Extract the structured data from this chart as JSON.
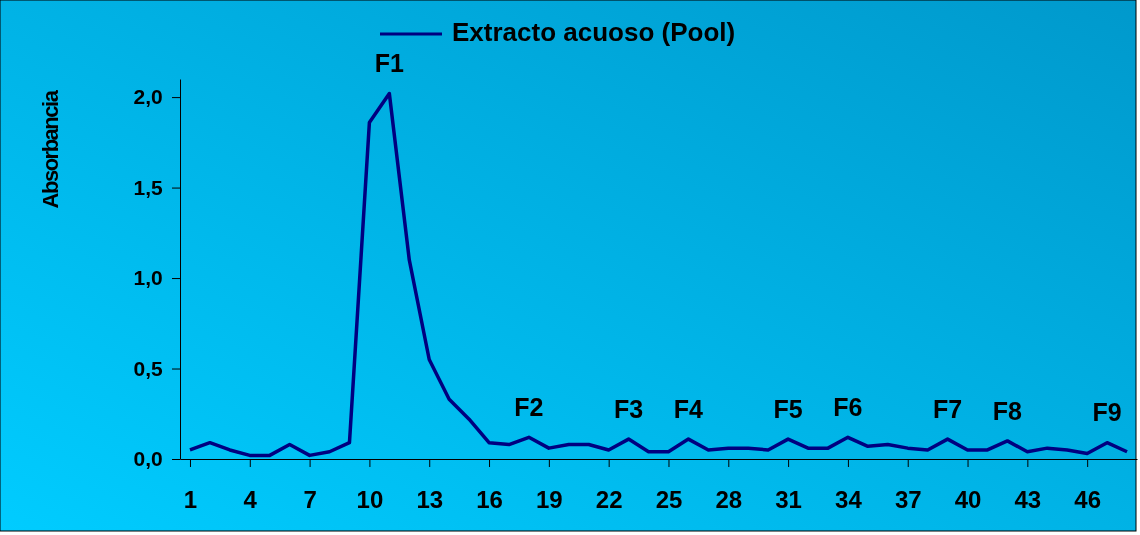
{
  "chart_data": {
    "type": "line",
    "ylabel": "Absorbancia",
    "legend": "top",
    "marker": "none",
    "line_style": "solid",
    "grid": false,
    "x": [
      1,
      2,
      3,
      4,
      5,
      6,
      7,
      8,
      9,
      10,
      11,
      12,
      13,
      14,
      15,
      16,
      17,
      18,
      19,
      20,
      21,
      22,
      23,
      24,
      25,
      26,
      27,
      28,
      29,
      30,
      31,
      32,
      33,
      34,
      35,
      36,
      37,
      38,
      39,
      40,
      41,
      42,
      43,
      44,
      45,
      46,
      47,
      48
    ],
    "series": [
      {
        "name": "Extracto acuoso (Pool)",
        "color": "#000080",
        "values": [
          0.05,
          0.09,
          0.05,
          0.02,
          0.02,
          0.08,
          0.02,
          0.04,
          0.09,
          1.86,
          2.02,
          1.1,
          0.55,
          0.33,
          0.22,
          0.09,
          0.08,
          0.12,
          0.06,
          0.08,
          0.08,
          0.05,
          0.11,
          0.04,
          0.04,
          0.11,
          0.05,
          0.06,
          0.06,
          0.05,
          0.11,
          0.06,
          0.06,
          0.12,
          0.07,
          0.08,
          0.06,
          0.05,
          0.11,
          0.05,
          0.05,
          0.1,
          0.04,
          0.06,
          0.05,
          0.03,
          0.09,
          0.04
        ]
      }
    ],
    "xlim": [
      0.5,
      48.5
    ],
    "xticks": [
      1,
      4,
      7,
      10,
      13,
      16,
      19,
      22,
      25,
      28,
      31,
      34,
      37,
      40,
      43,
      46
    ],
    "ylim": [
      0,
      2.1
    ],
    "yticks": [
      {
        "value": 0,
        "label": "0,0"
      },
      {
        "value": 0.5,
        "label": "0,5"
      },
      {
        "value": 1,
        "label": "1,0"
      },
      {
        "value": 1.5,
        "label": "1,5"
      },
      {
        "value": 2,
        "label": "2,0"
      }
    ],
    "annotations": [
      {
        "text": "F1",
        "x": 11,
        "y": 2.02
      },
      {
        "text": "F2",
        "x": 18,
        "y": 0.12
      },
      {
        "text": "F3",
        "x": 23,
        "y": 0.11
      },
      {
        "text": "F4",
        "x": 26,
        "y": 0.11
      },
      {
        "text": "F5",
        "x": 31,
        "y": 0.11
      },
      {
        "text": "F6",
        "x": 34,
        "y": 0.12
      },
      {
        "text": "F7",
        "x": 39,
        "y": 0.11
      },
      {
        "text": "F8",
        "x": 42,
        "y": 0.1
      },
      {
        "text": "F9",
        "x": 47,
        "y": 0.09
      }
    ]
  }
}
